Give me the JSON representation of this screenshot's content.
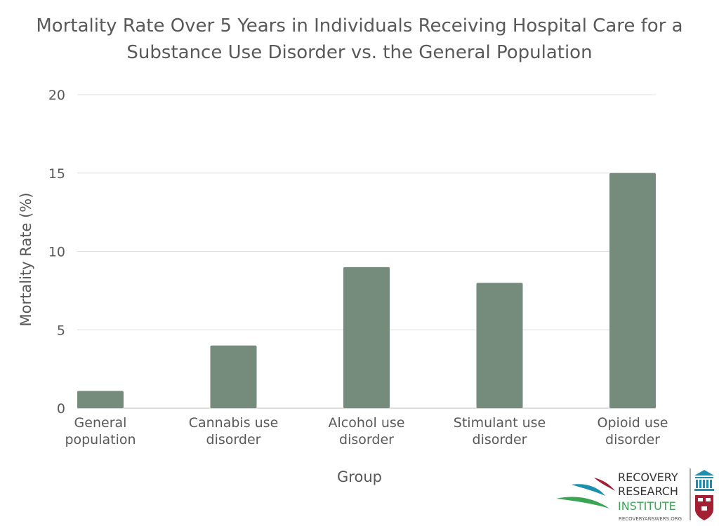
{
  "chart_data": {
    "type": "bar",
    "title_line1": "Mortality Rate Over 5 Years in Individuals Receiving Hospital Care for a",
    "title_line2": "Substance Use Disorder vs. the General Population",
    "categories": [
      [
        "General",
        "population"
      ],
      [
        "Cannabis use",
        "disorder"
      ],
      [
        "Alcohol use",
        "disorder"
      ],
      [
        "Stimulant use",
        "disorder"
      ],
      [
        "Opioid use",
        "disorder"
      ]
    ],
    "values": [
      1.1,
      4,
      9,
      8,
      15
    ],
    "xlabel": "Group",
    "ylabel": "Mortality Rate (%)",
    "ylim": [
      0,
      20
    ],
    "yticks": [
      0,
      5,
      10,
      15,
      20
    ],
    "grid": true,
    "legend": "none",
    "bar_color": "#758b7c",
    "grid_color": "#e0e0e0",
    "axis_color": "#bfbfbf",
    "text_color": "#595959"
  },
  "logo": {
    "line1": "RECOVERY",
    "line2": "RESEARCH",
    "line3": "INSTITUTE",
    "url": "RECOVERYANSWERS.ORG",
    "colors": {
      "red": "#a31f34",
      "teal": "#1b8fb0",
      "green": "#3aa655",
      "dark": "#333333"
    }
  }
}
